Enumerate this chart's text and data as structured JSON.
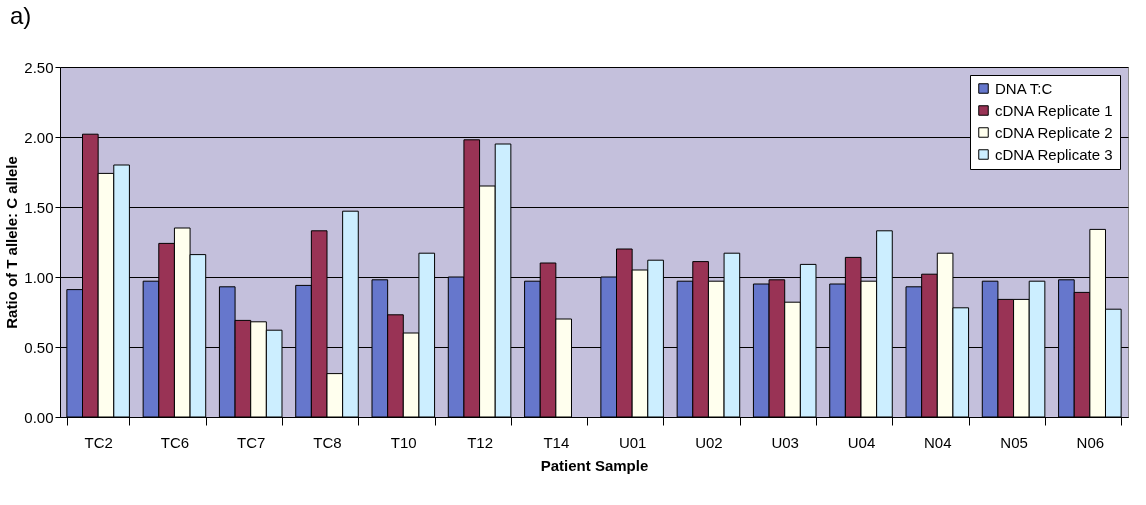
{
  "chart_data": {
    "type": "bar",
    "xlabel": "Patient Sample",
    "ylabel": "Ratio of T allele: C allele",
    "annotations": [
      "a)"
    ],
    "categories": [
      "TC2",
      "TC6",
      "TC7",
      "TC8",
      "T10",
      "T12",
      "T14",
      "U01",
      "U02",
      "U03",
      "U04",
      "N04",
      "N05",
      "N06"
    ],
    "series": [
      {
        "name": "DNA T:C",
        "color": "#6677cc",
        "values": [
          0.91,
          0.97,
          0.93,
          0.94,
          0.98,
          1.0,
          0.97,
          1.0,
          0.97,
          0.95,
          0.95,
          0.93,
          0.97,
          0.98
        ]
      },
      {
        "name": "cDNA Replicate 1",
        "color": "#993355",
        "values": [
          2.02,
          1.24,
          0.69,
          1.33,
          0.73,
          1.98,
          1.1,
          1.2,
          1.11,
          0.98,
          1.14,
          1.02,
          0.84,
          0.89
        ]
      },
      {
        "name": "cDNA Replicate 2",
        "color": "#ffffee",
        "values": [
          1.74,
          1.35,
          0.68,
          0.31,
          0.6,
          1.65,
          0.7,
          1.05,
          0.97,
          0.82,
          0.97,
          1.17,
          0.84,
          1.34
        ]
      },
      {
        "name": "cDNA Replicate 3",
        "color": "#cceeff",
        "values": [
          1.8,
          1.16,
          0.62,
          1.47,
          1.17,
          1.95,
          null,
          1.12,
          1.17,
          1.09,
          1.33,
          0.78,
          0.97,
          0.77
        ]
      }
    ],
    "ylim": [
      0,
      2.5
    ],
    "yticks": [
      {
        "value": 0,
        "label": "0.00"
      },
      {
        "value": 0.5,
        "label": "0.50"
      },
      {
        "value": 1,
        "label": "1.00"
      },
      {
        "value": 1.5,
        "label": "1.50"
      },
      {
        "value": 2,
        "label": "2.00"
      },
      {
        "value": 2.5,
        "label": "2.50"
      }
    ],
    "grid": "y",
    "legend": "top right"
  }
}
